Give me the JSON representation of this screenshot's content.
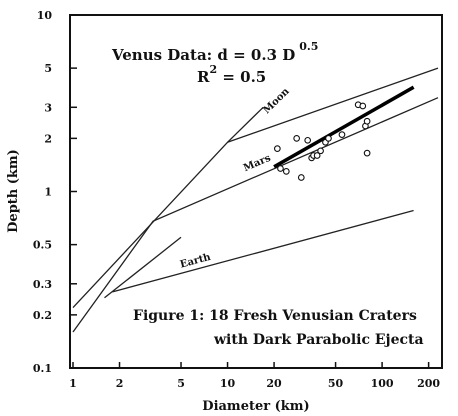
{
  "chart_data": {
    "type": "scatter",
    "x_scale": "log",
    "y_scale": "log",
    "xlabel": "Diameter (km)",
    "ylabel": "Depth (km)",
    "xlim": [
      1,
      230
    ],
    "ylim": [
      0.1,
      10
    ],
    "x_ticks": [
      {
        "value": 1,
        "label": "1"
      },
      {
        "value": 2,
        "label": "2"
      },
      {
        "value": 5,
        "label": "5"
      },
      {
        "value": 10,
        "label": "10"
      },
      {
        "value": 20,
        "label": "20"
      },
      {
        "value": 50,
        "label": "50"
      },
      {
        "value": 100,
        "label": "100"
      },
      {
        "value": 200,
        "label": "200"
      }
    ],
    "y_ticks": [
      {
        "value": 0.1,
        "label": "0.1"
      },
      {
        "value": 0.2,
        "label": "0.2"
      },
      {
        "value": 0.3,
        "label": "0.3"
      },
      {
        "value": 0.5,
        "label": "0.5"
      },
      {
        "value": 1,
        "label": "1"
      },
      {
        "value": 2,
        "label": "2"
      },
      {
        "value": 3,
        "label": "3"
      },
      {
        "value": 5,
        "label": "5"
      },
      {
        "value": 10,
        "label": "10"
      }
    ],
    "annotation": {
      "line1": "Venus Data: d = 0.3 D",
      "line1_exponent": "0.5",
      "line2_base": "R",
      "line2_exponent": "2",
      "line2_rest": " = 0.5"
    },
    "caption": {
      "line1": "Figure 1:  18 Fresh Venusian Craters",
      "line2": "with Dark Parabolic Ejecta"
    },
    "reference_curves": [
      {
        "label": "Moon",
        "points": [
          [
            1,
            0.22
          ],
          [
            10,
            1.9
          ],
          [
            17,
            3.0
          ]
        ],
        "label_at": [
          18,
          2.75
        ]
      },
      {
        "label": "Moon",
        "points": [
          [
            10,
            1.9
          ],
          [
            230,
            5.0
          ]
        ]
      },
      {
        "label": "Mars",
        "points": [
          [
            1,
            0.16
          ],
          [
            3.3,
            0.68
          ],
          [
            230,
            3.4
          ]
        ],
        "label_at": [
          13,
          1.3
        ]
      },
      {
        "label": "Earth",
        "points": [
          [
            1.6,
            0.25
          ],
          [
            5,
            0.55
          ]
        ]
      },
      {
        "label": "Earth",
        "points": [
          [
            1.8,
            0.27
          ],
          [
            160,
            0.78
          ]
        ],
        "label_at": [
          5.0,
          0.37
        ]
      }
    ],
    "fit_line": {
      "points": [
        [
          20,
          1.38
        ],
        [
          160,
          3.9
        ]
      ]
    },
    "series": [
      {
        "points": [
          [
            21,
            1.75
          ],
          [
            22,
            1.35
          ],
          [
            24,
            1.3
          ],
          [
            28,
            2.0
          ],
          [
            30,
            1.2
          ],
          [
            33,
            1.95
          ],
          [
            35,
            1.55
          ],
          [
            36,
            1.6
          ],
          [
            38,
            1.6
          ],
          [
            40,
            1.7
          ],
          [
            43,
            1.9
          ],
          [
            45,
            2.0
          ],
          [
            70,
            3.1
          ],
          [
            75,
            3.05
          ],
          [
            78,
            2.35
          ],
          [
            80,
            1.65
          ],
          [
            55,
            2.1
          ],
          [
            80,
            2.5
          ]
        ]
      }
    ]
  }
}
